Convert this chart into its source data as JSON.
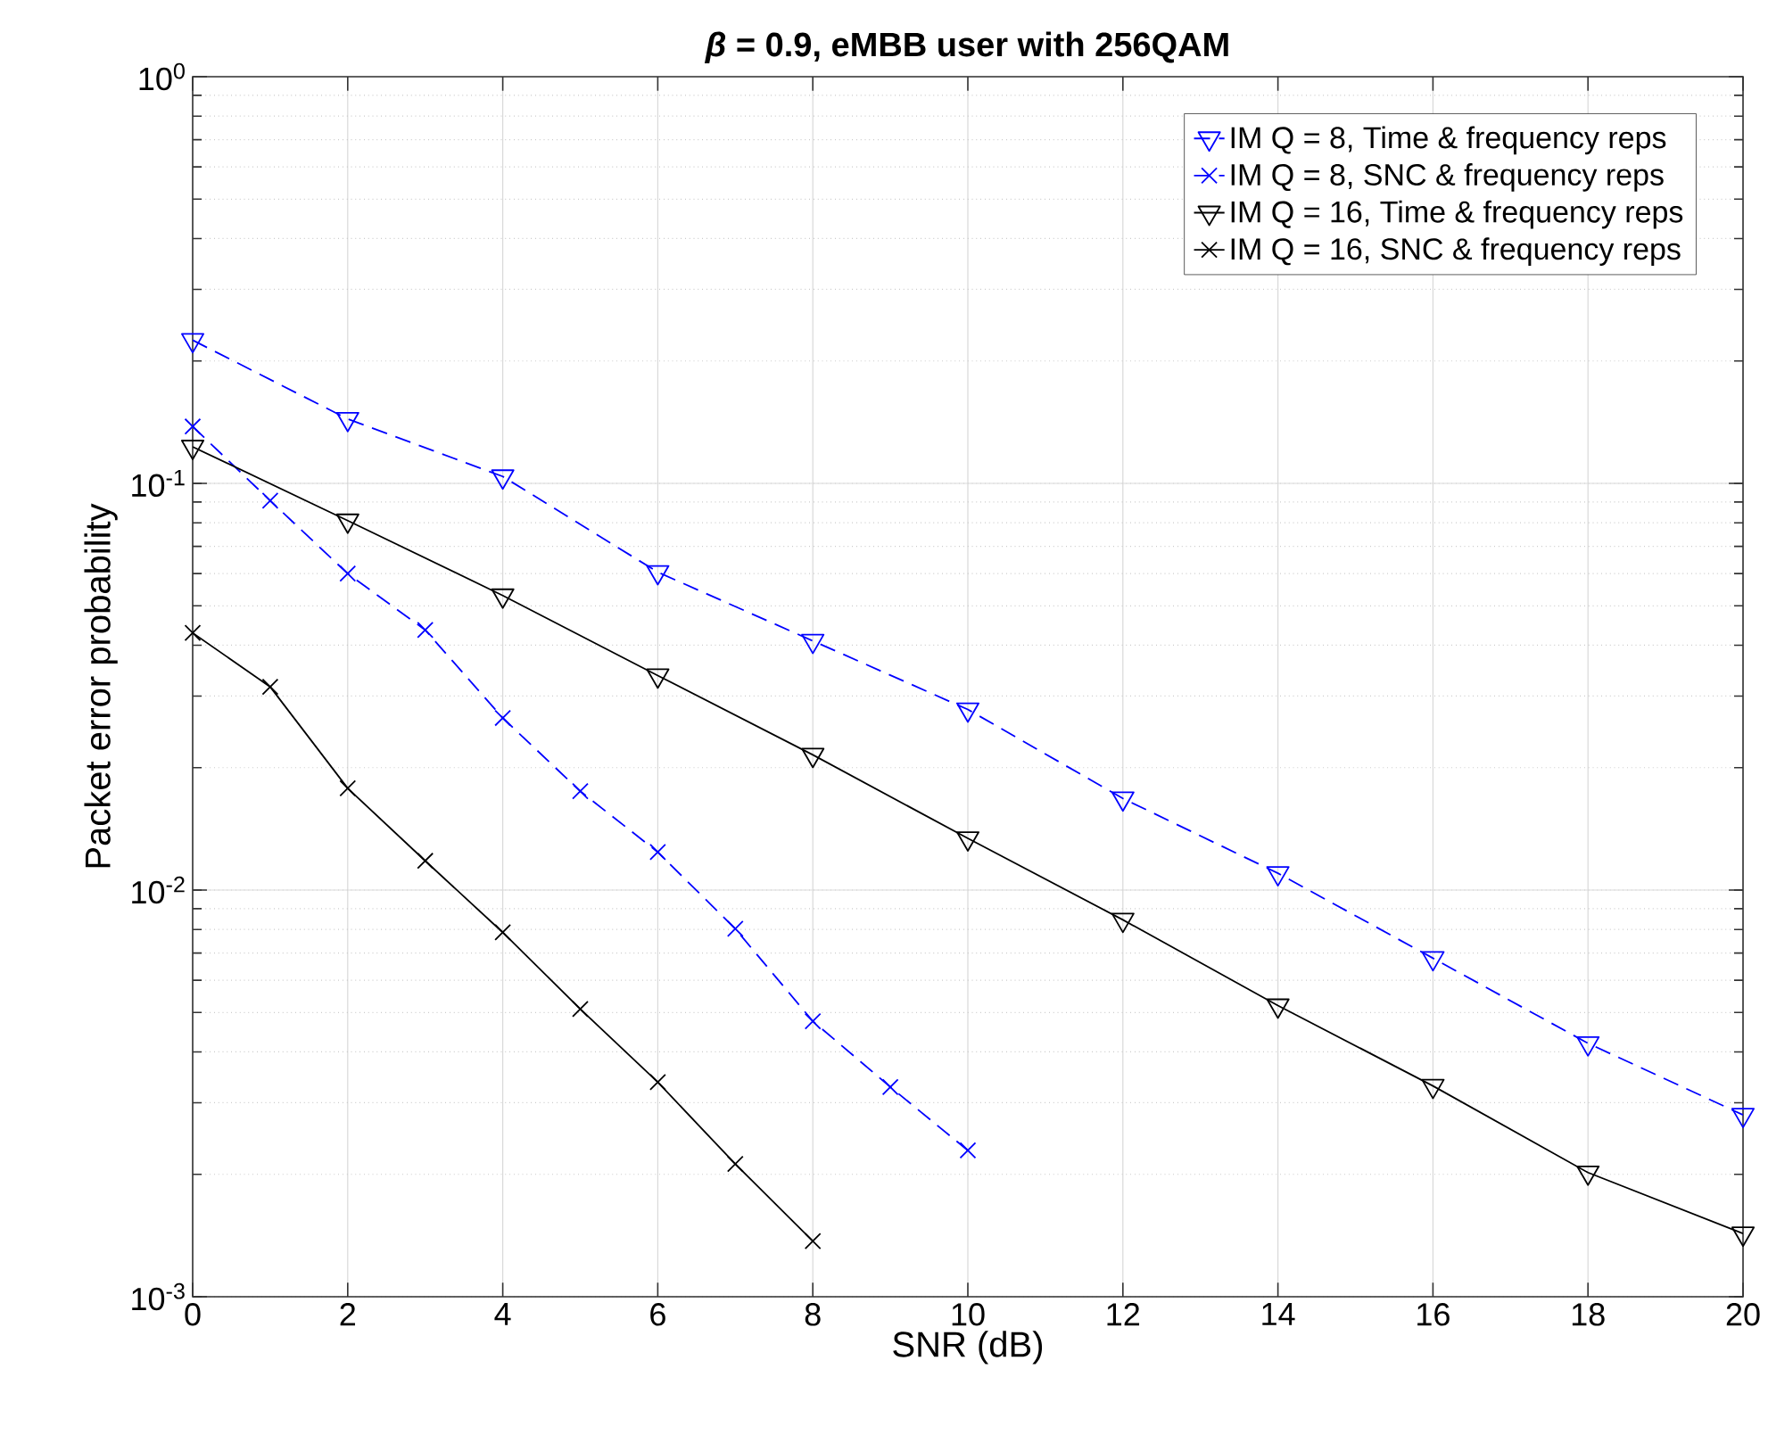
{
  "chart_data": {
    "type": "line",
    "title": "*β* = 0.9, eMBB user with 256QAM",
    "xlabel": "SNR (dB)",
    "ylabel": "Packet error probability",
    "log": "y",
    "grid": true,
    "legend": "top right",
    "xlim": [
      0,
      20
    ],
    "xticks": [
      0,
      2,
      4,
      6,
      8,
      10,
      12,
      14,
      16,
      18,
      20
    ],
    "ylim": [
      0.001,
      1
    ],
    "yticks": [
      {
        "value": 0.001,
        "label": "10$^{-3}$"
      },
      {
        "value": 0.01,
        "label": "10$^{-2}$"
      },
      {
        "value": 0.1,
        "label": "10$^{-1}$"
      },
      {
        "value": 1,
        "label": "10$^{0}$"
      }
    ],
    "series": [
      {
        "name": "IM Q = 8, Time & frequency reps",
        "color": "#0000ff",
        "marker": "triangle",
        "line_style": "dashed",
        "x": [
          0,
          2,
          4,
          6,
          8,
          10,
          12,
          14,
          16,
          18,
          20
        ],
        "values": [
          0.225,
          0.144,
          0.104,
          0.0605,
          0.041,
          0.0278,
          0.0168,
          0.011,
          0.0068,
          0.0042,
          0.0028
        ]
      },
      {
        "name": "IM Q = 8, SNC & frequency reps",
        "color": "#0000ff",
        "marker": "cross",
        "line_style": "dashed",
        "x": [
          0,
          1,
          2,
          3,
          4,
          5,
          6,
          7,
          8,
          9,
          10
        ],
        "values": [
          0.138,
          0.0907,
          0.06,
          0.0436,
          0.0265,
          0.0175,
          0.0124,
          0.00803,
          0.00476,
          0.00328,
          0.00229
        ]
      },
      {
        "name": "IM Q = 16, Time & frequency reps",
        "color": "#000000",
        "marker": "triangle",
        "line_style": "solid",
        "x": [
          0,
          2,
          4,
          6,
          8,
          10,
          12,
          14,
          16,
          18,
          20
        ],
        "values": [
          0.123,
          0.081,
          0.053,
          0.0337,
          0.0215,
          0.0134,
          0.00845,
          0.0052,
          0.0033,
          0.00202,
          0.00143
        ]
      },
      {
        "name": "IM Q = 16, SNC & frequency reps",
        "color": "#000000",
        "marker": "cross",
        "line_style": "solid",
        "x": [
          0,
          1,
          2,
          3,
          4,
          5,
          6,
          7,
          8
        ],
        "values": [
          0.0429,
          0.0316,
          0.0178,
          0.0118,
          0.00787,
          0.0051,
          0.00337,
          0.00212,
          0.00137
        ]
      }
    ]
  }
}
